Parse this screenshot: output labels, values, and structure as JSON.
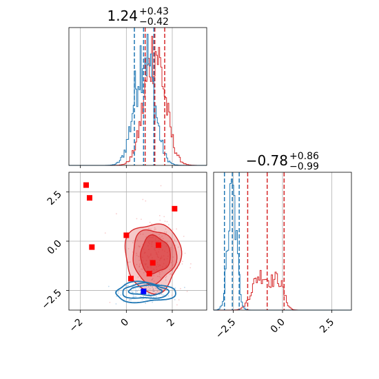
{
  "chart_data": {
    "type": "corner",
    "colors": {
      "blue": "#1f77b4",
      "red": "#d62728",
      "marker_red": "#ff0000",
      "marker_blue": "#0000ff",
      "grid": "#b0b0b0",
      "axis": "#000000"
    },
    "x_range": [
      -2.5,
      3.5
    ],
    "y_range": [
      -3.5,
      3.5
    ],
    "x_ticks": [
      {
        "value": -2,
        "label": "−2"
      },
      {
        "value": 0,
        "label": "0"
      },
      {
        "value": 2,
        "label": "2"
      }
    ],
    "y_ticks": [
      {
        "value": 2.5,
        "label": "2.5"
      },
      {
        "value": 0.0,
        "label": "0.0"
      },
      {
        "value": -2.5,
        "label": "−2.5"
      }
    ],
    "y_hist_ticks": [
      {
        "value": -2.5,
        "label": "−2.5"
      },
      {
        "value": 0.0,
        "label": "0.0"
      },
      {
        "value": 2.5,
        "label": "2.5"
      }
    ],
    "top_title": {
      "main": "1.24",
      "sup": "+0.43",
      "sub": "−0.42"
    },
    "right_title": {
      "main": "−0.78",
      "sup": "+0.86",
      "sub": "−0.99"
    },
    "x_hist": {
      "blue_quantiles": [
        0.35,
        0.75,
        1.2
      ],
      "red_quantiles": [
        0.82,
        1.24,
        1.67
      ],
      "grid_x": [
        -2,
        0,
        2
      ]
    },
    "y_hist": {
      "blue_quantiles": [
        -2.95,
        -2.55,
        -2.2
      ],
      "red_quantiles": [
        -1.77,
        -0.78,
        0.08
      ],
      "grid_x": [
        -2.5,
        0.0,
        2.5
      ]
    },
    "markers_red": [
      {
        "x": -1.75,
        "y": 2.85
      },
      {
        "x": -1.6,
        "y": 2.2
      },
      {
        "x": -1.5,
        "y": -0.3
      },
      {
        "x": 0.0,
        "y": 0.3
      },
      {
        "x": 1.4,
        "y": -0.2
      },
      {
        "x": 1.15,
        "y": -1.1
      },
      {
        "x": 1.0,
        "y": -1.65
      },
      {
        "x": 0.2,
        "y": -1.9
      },
      {
        "x": 2.1,
        "y": 1.65
      }
    ],
    "markers_blue": [
      {
        "x": 0.75,
        "y": -2.55
      }
    ]
  }
}
